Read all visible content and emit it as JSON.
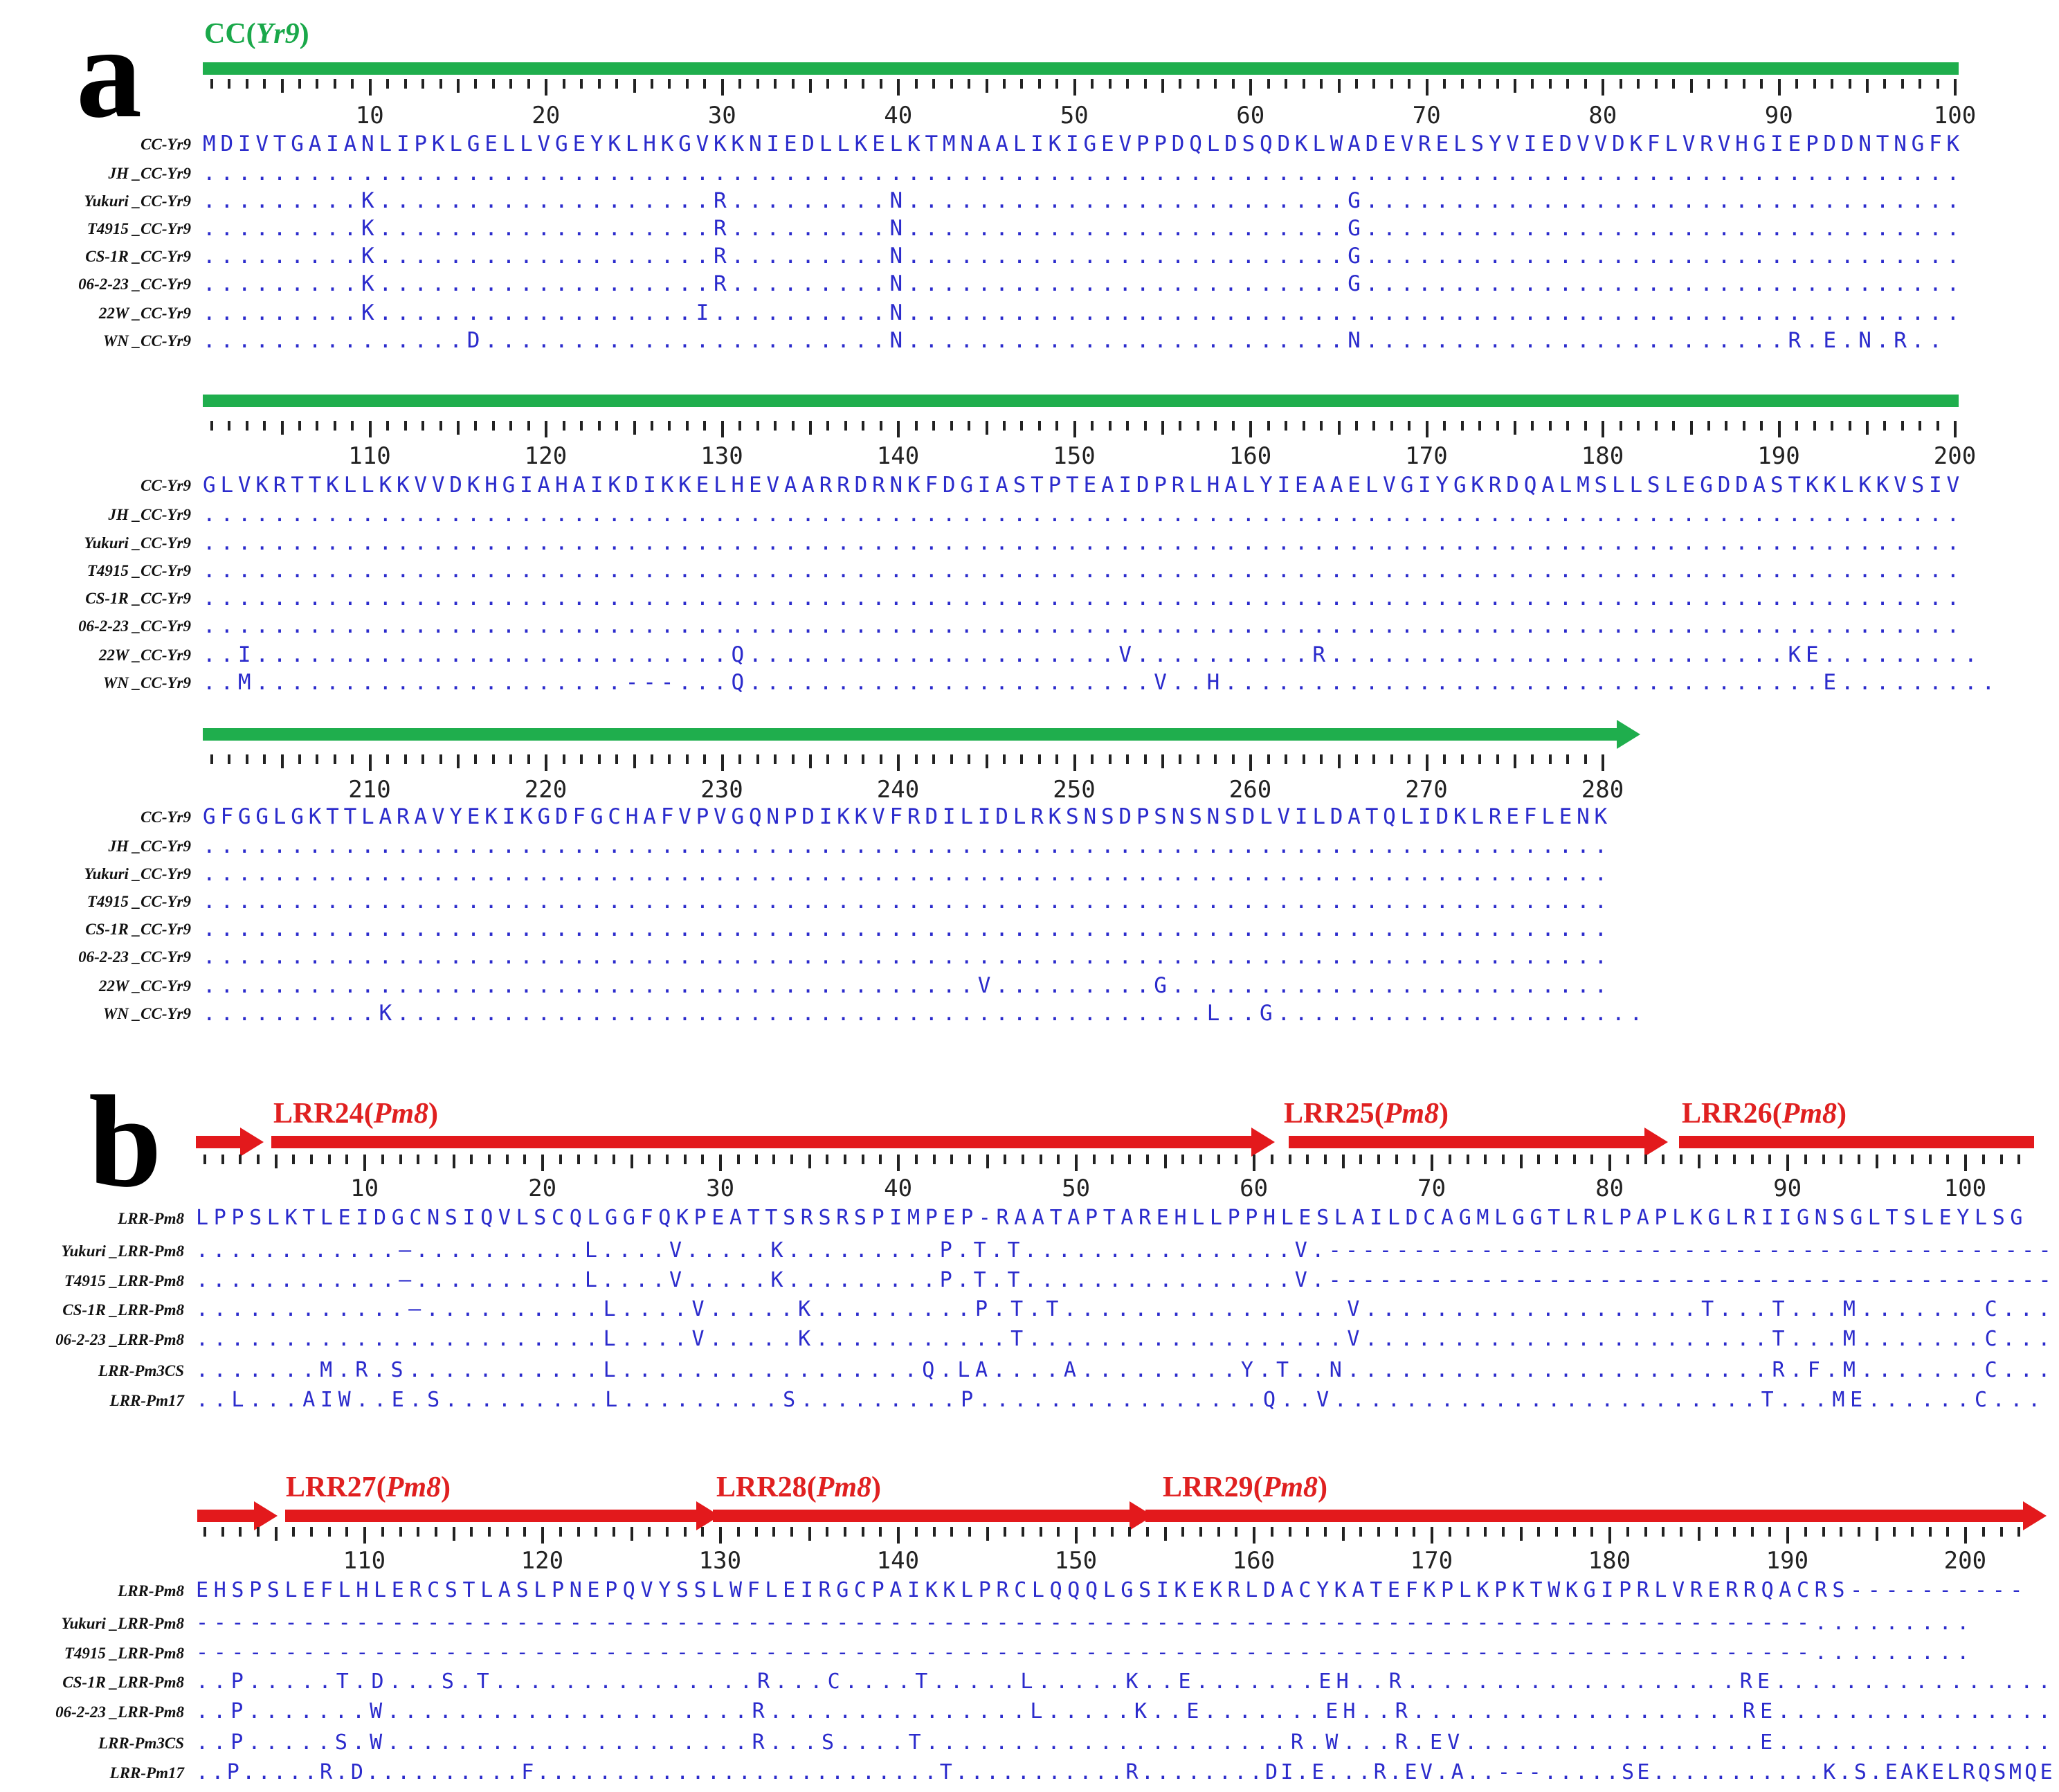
{
  "panel_a": {
    "letter": "a",
    "domain": {
      "name": "CC(",
      "gene": "Yr9",
      "close": ")"
    },
    "blocks": [
      {
        "numbers": [
          "10",
          "20",
          "30",
          "40",
          "50",
          "60",
          "70",
          "80",
          "90",
          "100"
        ],
        "rows": [
          {
            "label": "CC-Yr9",
            "seq": "MDIVTGAIANLIPKLGELLVGEYKLHKGVKKNIEDLLKELKTMNAALIKIGEVPPDQLDSQDKLWADEVRELSYVIEDVVDKFLVRVHGIEPDDNTNGFK"
          },
          {
            "label": "JH _CC-Yr9",
            "seq": "...................................................................................................."
          },
          {
            "label": "Yukuri _CC-Yr9",
            "seq": ".........K...................R.........N.........................G.................................."
          },
          {
            "label": "T4915 _CC-Yr9",
            "seq": ".........K...................R.........N.........................G.................................."
          },
          {
            "label": "CS-1R _CC-Yr9",
            "seq": ".........K...................R.........N.........................G.................................."
          },
          {
            "label": "06-2-23 _CC-Yr9",
            "seq": ".........K...................R.........N.........................G.................................."
          },
          {
            "label": "22W _CC-Yr9",
            "seq": ".........K..................I..........N............................................................"
          },
          {
            "label": "WN _CC-Yr9",
            "seq": "...............D.......................N.........................N........................R.E.N.R.."
          }
        ]
      },
      {
        "numbers": [
          "110",
          "120",
          "130",
          "140",
          "150",
          "160",
          "170",
          "180",
          "190",
          "200"
        ],
        "rows": [
          {
            "label": "CC-Yr9",
            "seq": "GLVKRTTKLLKKVVDKHGIAHAIKDIKKELHEVAARRDRNKFDGIASTPTEAIDPRLHALYIEAAELVGIYGKRDQALMSLLSLEGDDASTKKLKKVSIV"
          },
          {
            "label": "JH _CC-Yr9",
            "seq": "...................................................................................................."
          },
          {
            "label": "Yukuri _CC-Yr9",
            "seq": "...................................................................................................."
          },
          {
            "label": "T4915 _CC-Yr9",
            "seq": "...................................................................................................."
          },
          {
            "label": "CS-1R _CC-Yr9",
            "seq": "...................................................................................................."
          },
          {
            "label": "06-2-23 _CC-Yr9",
            "seq": "...................................................................................................."
          },
          {
            "label": "22W _CC-Yr9",
            "seq": "..I...........................Q.....................V..........R..........................KE........."
          },
          {
            "label": "WN _CC-Yr9",
            "seq": "..M.....................---...Q.......................V..H..................................E........."
          }
        ]
      },
      {
        "numbers": [
          "210",
          "220",
          "230",
          "240",
          "250",
          "260",
          "270",
          "280"
        ],
        "rows": [
          {
            "label": "CC-Yr9",
            "seq": "GFGGLGKTTLARAVYEKIKGDFGCHAFVPVGQNPDIKKVFRDILIDLRKSNSDPSNSNSDLVILDATQLIDKLREFLENK"
          },
          {
            "label": "JH _CC-Yr9",
            "seq": "................................................................................"
          },
          {
            "label": "Yukuri _CC-Yr9",
            "seq": "................................................................................"
          },
          {
            "label": "T4915 _CC-Yr9",
            "seq": "................................................................................"
          },
          {
            "label": "CS-1R _CC-Yr9",
            "seq": "................................................................................"
          },
          {
            "label": "06-2-23 _CC-Yr9",
            "seq": "................................................................................"
          },
          {
            "label": "22W _CC-Yr9",
            "seq": "............................................V.........G........................."
          },
          {
            "label": "WN _CC-Yr9",
            "seq": "..........K..............................................L..G....................."
          }
        ]
      }
    ]
  },
  "panel_b": {
    "letter": "b",
    "blocks": [
      {
        "domains": [
          {
            "name": "LRR24",
            "gene": "Pm8"
          },
          {
            "name": "LRR25",
            "gene": "Pm8"
          },
          {
            "name": "LRR26",
            "gene": "Pm8"
          }
        ],
        "numbers": [
          "10",
          "20",
          "30",
          "40",
          "50",
          "60",
          "70",
          "80",
          "90",
          "100"
        ],
        "rows": [
          {
            "label": "LRR-Pm8",
            "seq": "LPPSLKTLEIDGCNSIQVLSCQLGGFQKPEATTSRSRSPIMPEP-RAATAPTAREHLLPPHLESLAILDCAGMLGGTLRLPAPLKGLRIIGNSGLTSLEYLSG"
          },
          {
            "label": "Yukuri _LRR-Pm8",
            "seq": "............—..........L....V.....K.........P.T.T................V.-------------------------------------------"
          },
          {
            "label": "T4915 _LRR-Pm8",
            "seq": "............—..........L....V.....K.........P.T.T................V.-------------------------------------------"
          },
          {
            "label": "CS-1R _LRR-Pm8",
            "seq": "............—..........L....V.....K.........P.T.T................V...................T...T...M.......C..."
          },
          {
            "label": "06-2-23 _LRR-Pm8",
            "seq": ".......................L....V.....K...........T..................V.......................T...M.......C..."
          },
          {
            "label": "LRR-Pm3CS",
            "seq": ".......M.R.S...........L.................Q.LA....A.........Y.T..N........................R.F.M.......C..."
          },
          {
            "label": "LRR-Pm17",
            "seq": "..L...AIW..E.S.........L.........S.........P................Q..V........................T...ME......C..."
          }
        ]
      },
      {
        "domains": [
          {
            "name": "LRR27",
            "gene": "Pm8"
          },
          {
            "name": "LRR28",
            "gene": "Pm8"
          },
          {
            "name": "LRR29",
            "gene": "Pm8"
          }
        ],
        "numbers": [
          "110",
          "120",
          "130",
          "140",
          "150",
          "160",
          "170",
          "180",
          "190",
          "200"
        ],
        "rows": [
          {
            "label": "LRR-Pm8",
            "seq": "EHSPSLEFLHLERCSTLASLPNEPQVYSSLWFLEIRGCPAIKKLPRCLQQQLGSIKEKRLDACYKATEFKPLKPKTWKGIPRLVRERRQACRS----------"
          },
          {
            "label": "Yukuri _LRR-Pm8",
            "seq": "-------------------------------------------------------------------------------------------........."
          },
          {
            "label": "T4915 _LRR-Pm8",
            "seq": "-------------------------------------------------------------------------------------------........."
          },
          {
            "label": "CS-1R _LRR-Pm8",
            "seq": "..P.....T.D...S.T...............R...C....T.....L.....K..E.......EH..R...................RE................"
          },
          {
            "label": "06-2-23 _LRR-Pm8",
            "seq": "..P.......W.....................R...............L.....K..E.......EH..R...................RE................"
          },
          {
            "label": "LRR-Pm3CS",
            "seq": "..P.....S.W.....................R...S....T.....................R.W...R.EV.................E................"
          },
          {
            "label": "LRR-Pm17",
            "seq": "..P.....R.D..........F..........................T...........R........DI.E...R.EV.A..---.....SE...........K.S.EAKELRQSMQE"
          }
        ]
      }
    ]
  }
}
